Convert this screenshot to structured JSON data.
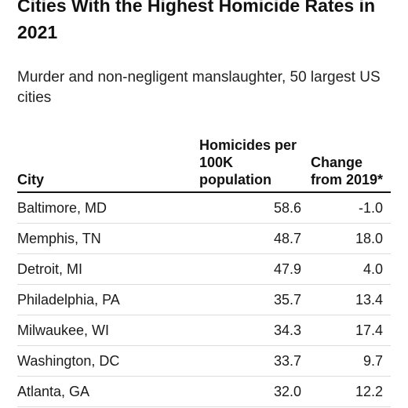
{
  "title": "Cities With the Highest Homicide Rates in 2021",
  "subtitle": "Murder and non-negligent manslaughter, 50 largest US cities",
  "chart_data": {
    "type": "table",
    "columns": [
      "City",
      "Homicides per 100K population",
      "Change from 2019*"
    ],
    "rows": [
      {
        "city": "Baltimore, MD",
        "rate": "58.6",
        "change": "-1.0"
      },
      {
        "city": "Memphis, TN",
        "rate": "48.7",
        "change": "18.0"
      },
      {
        "city": "Detroit, MI",
        "rate": "47.9",
        "change": "4.0"
      },
      {
        "city": "Philadelphia, PA",
        "rate": "35.7",
        "change": "13.4"
      },
      {
        "city": "Milwaukee, WI",
        "rate": "34.3",
        "change": "17.4"
      },
      {
        "city": "Washington, DC",
        "rate": "33.7",
        "change": "9.7"
      },
      {
        "city": "Atlanta, GA",
        "rate": "32.0",
        "change": "12.2"
      }
    ]
  }
}
